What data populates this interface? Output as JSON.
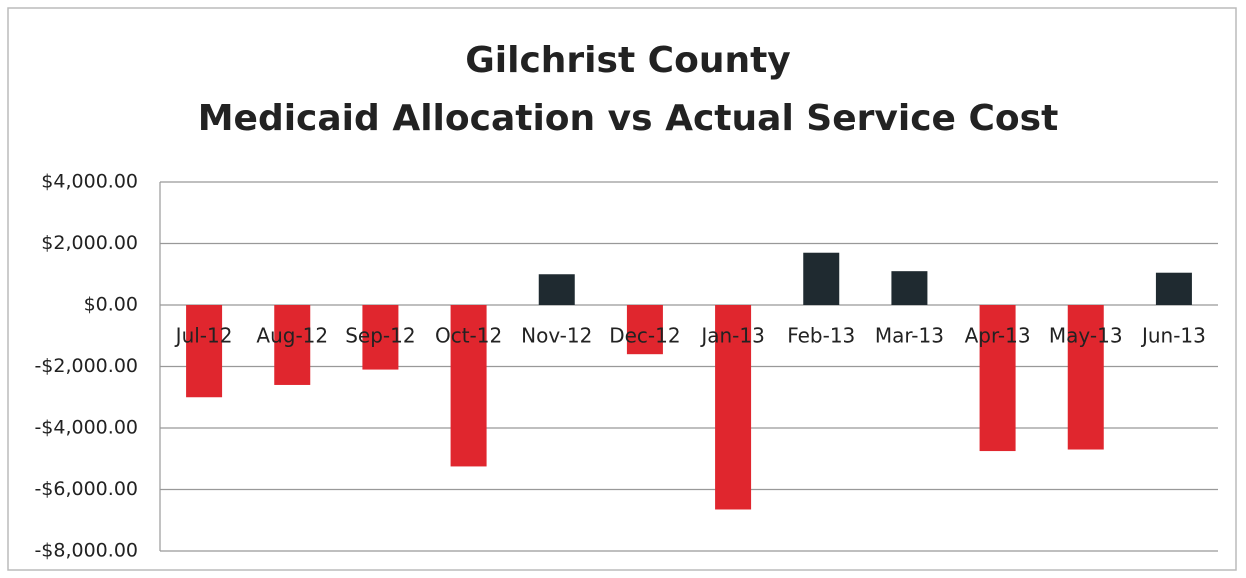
{
  "chart_data": {
    "type": "bar",
    "title": [
      "Gilchrist County",
      "Medicaid Allocation vs Actual Service Cost"
    ],
    "categories": [
      "Jul-12",
      "Aug-12",
      "Sep-12",
      "Oct-12",
      "Nov-12",
      "Dec-12",
      "Jan-13",
      "Feb-13",
      "Mar-13",
      "Apr-13",
      "May-13",
      "Jun-13"
    ],
    "values": [
      -3000,
      -2600,
      -2100,
      -5250,
      1000,
      -1600,
      -6650,
      1700,
      1100,
      -4750,
      -4700,
      1050
    ],
    "positive_color": "#1f2a30",
    "negative_color": "#e0262e",
    "ylim": [
      -8000,
      4000
    ],
    "yticks": [
      {
        "value": -8000,
        "label": "-$8,000.00"
      },
      {
        "value": -6000,
        "label": "-$6,000.00"
      },
      {
        "value": -4000,
        "label": "-$4,000.00"
      },
      {
        "value": -2000,
        "label": "-$2,000.00"
      },
      {
        "value": 0,
        "label": "$0.00"
      },
      {
        "value": 2000,
        "label": "$2,000.00"
      },
      {
        "value": 4000,
        "label": "$4,000.00"
      }
    ],
    "grid": true
  }
}
